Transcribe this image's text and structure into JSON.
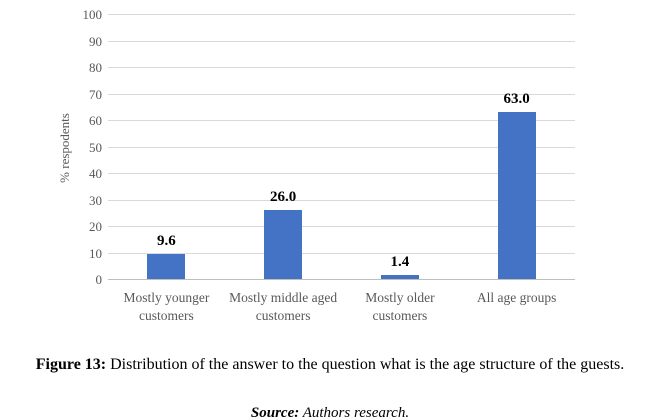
{
  "chart_data": {
    "type": "bar",
    "categories": [
      "Mostly younger\ncustomers",
      "Mostly middle aged\ncustomers",
      "Mostly older\ncustomers",
      "All age groups"
    ],
    "values": [
      9.6,
      26.0,
      1.4,
      63.0
    ],
    "data_labels": [
      "9.6",
      "26.0",
      "1.4",
      "63.0"
    ],
    "title": "",
    "xlabel": "",
    "ylabel": "% respodents",
    "ylim": [
      0,
      100
    ],
    "yticks": [
      0,
      10,
      20,
      30,
      40,
      50,
      60,
      70,
      80,
      90,
      100
    ],
    "grid": "horizontal",
    "legend": "none",
    "bar_color": "#4472C4",
    "gridline_color": "#D9D9D9",
    "axis_text_color": "#595959"
  },
  "caption": {
    "figure_label": "Figure 13:",
    "figure_text": " Distribution of the answer to the question what is the age structure of the guests.",
    "source_label": "Source:",
    "source_text": " Authors research."
  }
}
